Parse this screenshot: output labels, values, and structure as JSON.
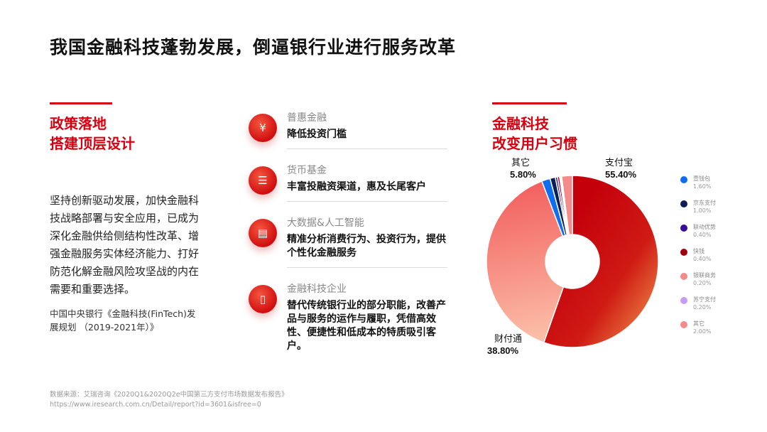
{
  "title": "我国金融科技蓬勃发展，倒逼银行业进行服务改革",
  "left": {
    "heading": [
      "政策落地",
      "搭建顶层设计"
    ],
    "body": "坚持创新驱动发展，加快金融科技战略部署与安全应用，已成为深化金融供给侧结构性改革、增强金融服务实体经济能力、打好防范化解金融风险攻坚战的内在需要和重要选择。",
    "citation": "中国中央银行《金融科技(FinTech)发展规划 （2019-2021年）》"
  },
  "items": [
    {
      "icon": "hand-money-icon",
      "sub": "普惠金融",
      "main": "降低投资门槛"
    },
    {
      "icon": "coins-stack-icon",
      "sub": "货币基金",
      "main": "丰富投融资渠道，惠及长尾客户"
    },
    {
      "icon": "presentation-chart-icon",
      "sub": "大数据&人工智能",
      "main": "精准分析消费行为、投资行为，提供个性化金融服务"
    },
    {
      "icon": "mobile-payment-icon",
      "sub": "金融科技企业",
      "main": "替代传统银行业的部分职能，改善产品与服务的运作与履职，凭借高效性、便捷性和低成本的特质吸引客户。"
    }
  ],
  "right": {
    "heading": [
      "金融科技",
      "改变用户习惯"
    ]
  },
  "chart_data": {
    "type": "pie",
    "donut": true,
    "slices": [
      {
        "name": "支付宝",
        "value": 55.4,
        "color": "#c8000a",
        "label": "55.40%"
      },
      {
        "name": "财付通",
        "value": 38.8,
        "color": "#f46a6a",
        "label": "38.80%"
      },
      {
        "name": "壹钱包",
        "value": 1.6,
        "color": "#0f6ef0",
        "label": "1.60%"
      },
      {
        "name": "京东支付",
        "value": 1.0,
        "color": "#0a1f55",
        "label": "1.00%"
      },
      {
        "name": "联动优势",
        "value": 0.4,
        "color": "#3a0a9a",
        "label": "0.40%"
      },
      {
        "name": "快钱",
        "value": 0.4,
        "color": "#a00010",
        "label": "0.40%"
      },
      {
        "name": "银联商务",
        "value": 0.2,
        "color": "#f58a8a",
        "label": "0.20%"
      },
      {
        "name": "苏宁支付",
        "value": 0.2,
        "color": "#c69cf5",
        "label": "0.20%"
      },
      {
        "name": "其它",
        "value": 2.0,
        "color": "#f58a8a",
        "label": "2.00%"
      }
    ],
    "callouts": [
      {
        "name": "支付宝",
        "label": "55.40%"
      },
      {
        "name": "财付通",
        "label": "38.80%"
      },
      {
        "name": "其它",
        "label": "5.80%"
      }
    ]
  },
  "source": [
    "数据来源：艾瑞咨询《2020Q1&2020Q2e中国第三方支付市场数据发布报告》",
    "https://www.iresearch.com.cn/Detail/report?id=3601&isfree=0"
  ]
}
